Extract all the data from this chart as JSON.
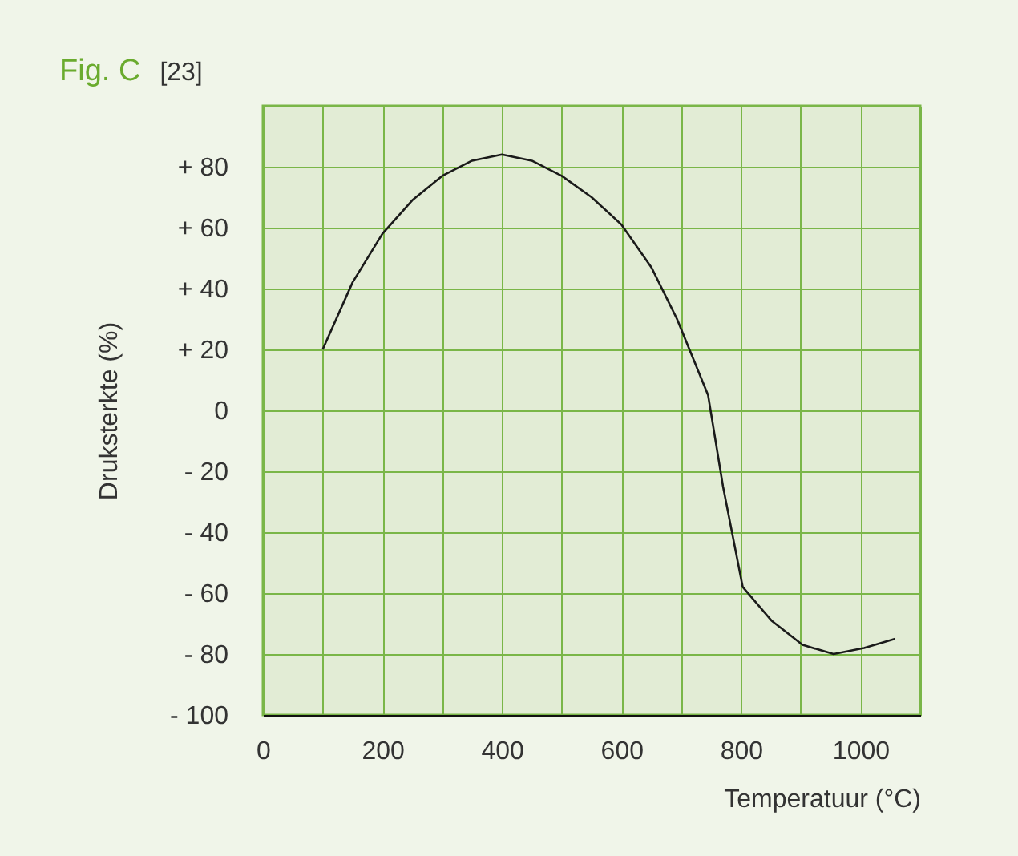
{
  "chart_data": {
    "type": "line",
    "title": "Fig. C",
    "subtitle": "[23]",
    "xlabel": "Temperatuur (°C)",
    "ylabel": "Druksterkte (%)",
    "x": [
      100,
      150,
      200,
      250,
      300,
      350,
      400,
      450,
      500,
      550,
      600,
      650,
      693,
      745,
      770,
      803,
      851,
      903,
      955,
      1006,
      1058
    ],
    "series": [
      {
        "color": "#1a1a1a",
        "values": [
          20,
          42,
          58,
          69,
          77,
          82,
          84,
          82,
          77,
          70,
          61,
          47,
          30,
          5,
          -25,
          -58,
          -69,
          -77,
          -80,
          -78,
          -75
        ]
      }
    ],
    "xlim": [
      0,
      1100
    ],
    "ylim": [
      -100,
      100
    ],
    "xticks": [
      0,
      {
        "value": 100,
        "label": null
      },
      200,
      {
        "value": 300,
        "label": null
      },
      400,
      {
        "value": 500,
        "label": null
      },
      600,
      {
        "value": 700,
        "label": null
      },
      800,
      {
        "value": 900,
        "label": null
      },
      1000,
      {
        "value": 1100,
        "label": null
      }
    ],
    "yticks": [
      {
        "value": -100,
        "label": "- 100"
      },
      {
        "value": -80,
        "label": "- 80"
      },
      {
        "value": -60,
        "label": "- 60"
      },
      {
        "value": -40,
        "label": "- 40"
      },
      {
        "value": -20,
        "label": "- 20"
      },
      0,
      {
        "value": 20,
        "label": "+ 20"
      },
      {
        "value": 40,
        "label": "+ 40"
      },
      {
        "value": 60,
        "label": "+ 60"
      },
      {
        "value": 80,
        "label": "+ 80"
      },
      {
        "value": 100,
        "label": null
      }
    ],
    "grid": true,
    "marker": "none",
    "line_style": "solid"
  }
}
